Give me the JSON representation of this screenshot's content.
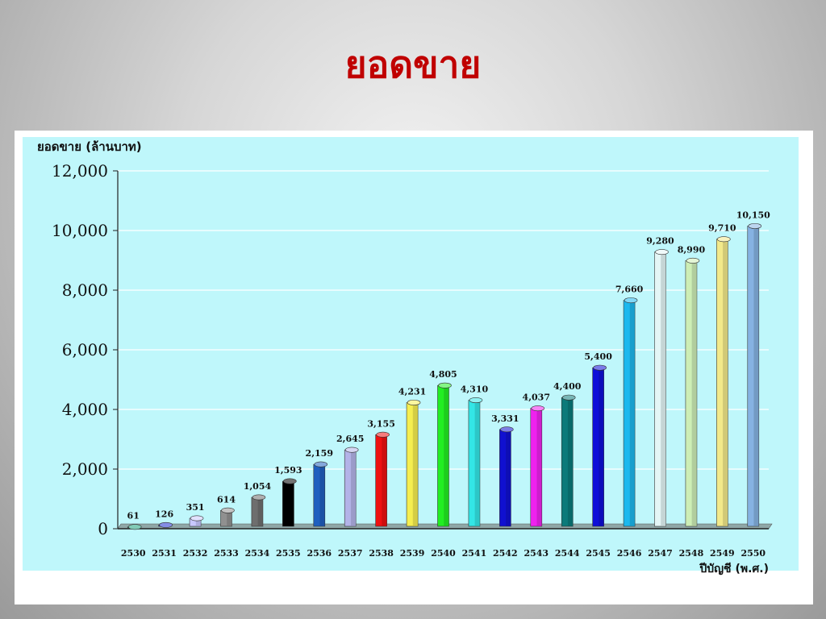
{
  "slide": {
    "title": "ยอดขาย"
  },
  "chart_data": {
    "type": "bar",
    "title": "",
    "ylabel": "ยอดขาย (ล้านบาท)",
    "xlabel": "ปีบัญชี (พ.ศ.)",
    "ylim": [
      0,
      12000
    ],
    "yticks": [
      0,
      2000,
      4000,
      6000,
      8000,
      10000,
      12000
    ],
    "ytick_labels": [
      "0",
      "2,000",
      "4,000",
      "6,000",
      "8,000",
      "10,000",
      "12,000"
    ],
    "grid": true,
    "categories": [
      "2530",
      "2531",
      "2532",
      "2533",
      "2534",
      "2535",
      "2536",
      "2537",
      "2538",
      "2539",
      "2540",
      "2541",
      "2542",
      "2543",
      "2544",
      "2545",
      "2546",
      "2547",
      "2548",
      "2549",
      "2550"
    ],
    "values": [
      61,
      126,
      351,
      614,
      1054,
      1593,
      2159,
      2645,
      3155,
      4231,
      4805,
      4310,
      3331,
      4037,
      4400,
      5400,
      7660,
      9280,
      8990,
      9710,
      10150
    ],
    "value_labels": [
      "61",
      "126",
      "351",
      "614",
      "1,054",
      "1,593",
      "2,159",
      "2,645",
      "3,155",
      "4,231",
      "4,805",
      "4,310",
      "3,331",
      "4,037",
      "4,400",
      "5,400",
      "7,660",
      "9,280",
      "8,990",
      "9,710",
      "10,150"
    ],
    "bar_colors": [
      "#1aa07a",
      "#1f2fd0",
      "#c8c8ff",
      "#909090",
      "#6e6e6e",
      "#000000",
      "#1f5fbf",
      "#b3b3e8",
      "#ee1111",
      "#f5ee50",
      "#22ee22",
      "#33e6e6",
      "#1010d0",
      "#ee22ee",
      "#0b7a7a",
      "#0e0ed8",
      "#1cb8ee",
      "#e4f6f6",
      "#cdeeb5",
      "#f2e98a",
      "#86b2e2"
    ],
    "background": "#bff7fb"
  }
}
